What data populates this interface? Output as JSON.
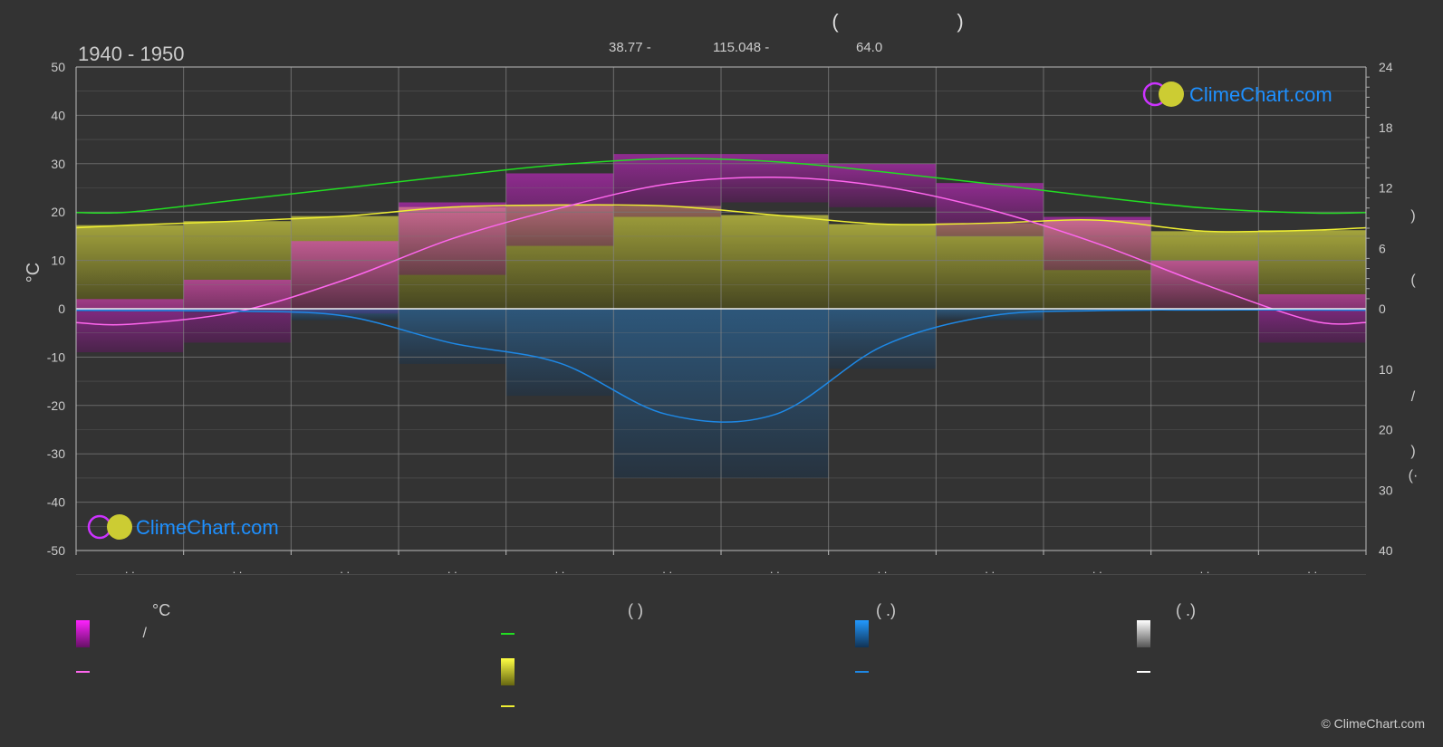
{
  "header": {
    "title_paren_left": "(",
    "title_paren_right": ")",
    "lat": "38.77 -",
    "lon": "115.048 -",
    "elev": "64.0",
    "period": "1940 - 1950"
  },
  "branding": {
    "logo_text": "ClimeChart.com",
    "copyright": "© ClimeChart.com"
  },
  "colors": {
    "background": "#333333",
    "daylight": "#22dd22",
    "sunshine": "#eeee33",
    "sunshine_area": "#aaaa22",
    "temp_mean": "#ff66ee",
    "temp_range": "#dd22dd",
    "precip": "#1e88e5",
    "snow": "#ffffff",
    "grid": "#777777"
  },
  "chart_data": {
    "type": "line",
    "x": [
      "Jan",
      "Feb",
      "Mar",
      "Apr",
      "May",
      "Jun",
      "Jul",
      "Aug",
      "Sep",
      "Oct",
      "Nov",
      "Dec"
    ],
    "month_tick_labels": [
      ". .",
      ". .",
      ". .",
      ". .",
      ". .",
      ". .",
      ". .",
      ". .",
      ". .",
      ". .",
      ". .",
      ". ."
    ],
    "ylabel_left": "°C",
    "ylim_left": [
      -50,
      50
    ],
    "yticks_left": [
      50,
      40,
      30,
      20,
      10,
      0,
      -10,
      -20,
      -30,
      -40,
      -50
    ],
    "ylim_right_hours": [
      0,
      24
    ],
    "yticks_right_hours": [
      24,
      18,
      12,
      6,
      0
    ],
    "ylim_right_mm": [
      0,
      40
    ],
    "yticks_right_mm": [
      10,
      20,
      30,
      40
    ],
    "right_axis_glyphs": [
      ")",
      "(",
      "/",
      ")",
      "(·"
    ],
    "grid": true,
    "series": [
      {
        "key": "daylight",
        "values": [
          9.6,
          10.8,
          12.0,
          13.2,
          14.3,
          14.9,
          14.6,
          13.6,
          12.4,
          11.1,
          10.0,
          9.5
        ]
      },
      {
        "key": "sunshine",
        "values": [
          8.3,
          8.7,
          9.2,
          10.1,
          10.3,
          10.2,
          9.3,
          8.4,
          8.5,
          8.8,
          7.7,
          7.8
        ]
      },
      {
        "key": "temp_mean",
        "values": [
          -3.2,
          -0.6,
          6.0,
          14.5,
          20.8,
          25.8,
          27.2,
          25.3,
          20.5,
          13.5,
          5.0,
          -2.5
        ]
      },
      {
        "key": "precip",
        "values": [
          0.3,
          0.4,
          1.2,
          5.7,
          9.0,
          17.5,
          17.5,
          6.2,
          1.2,
          0.3,
          0.2,
          0.2
        ]
      },
      {
        "key": "temp_max",
        "values": [
          2,
          6,
          14,
          22,
          28,
          32,
          32,
          30,
          26,
          19,
          10,
          3
        ]
      },
      {
        "key": "temp_min",
        "values": [
          -9,
          -7,
          -1,
          7,
          13,
          19,
          22,
          21,
          15,
          8,
          0,
          -7
        ]
      }
    ]
  },
  "legend": {
    "headers": [
      "°C",
      "(          )",
      "(   .)",
      "(   .)"
    ],
    "items": [
      {
        "kind": "box",
        "color_key": "temp_range",
        "label": "          /",
        "col": 0,
        "row": 0
      },
      {
        "kind": "line",
        "color_key": "temp_mean",
        "label": "",
        "col": 0,
        "row": 1
      },
      {
        "kind": "line",
        "color_key": "daylight",
        "label": "",
        "col": 1,
        "row": 0
      },
      {
        "kind": "box",
        "color_key": "sunshine",
        "label": "",
        "col": 1,
        "row": 1
      },
      {
        "kind": "line",
        "color_key": "sunshine",
        "label": "",
        "col": 1,
        "row": 2
      },
      {
        "kind": "box",
        "color_key": "precip",
        "label": "",
        "col": 2,
        "row": 0
      },
      {
        "kind": "line",
        "color_key": "precip",
        "label": "",
        "col": 2,
        "row": 1
      },
      {
        "kind": "box",
        "color_key": "snow",
        "label": "",
        "col": 3,
        "row": 0
      },
      {
        "kind": "line",
        "color_key": "snow",
        "label": "",
        "col": 3,
        "row": 1
      }
    ]
  }
}
